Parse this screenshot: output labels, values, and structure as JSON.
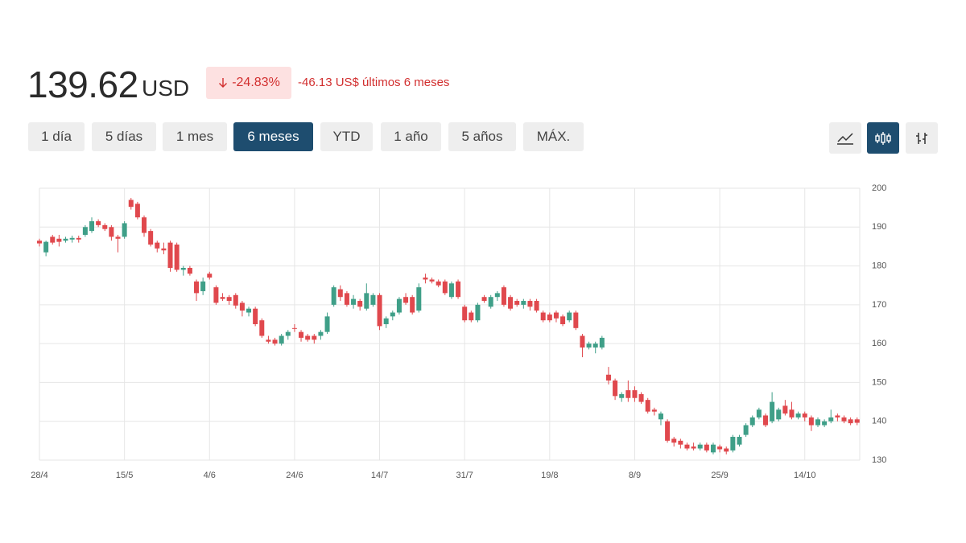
{
  "header": {
    "price": "139.62",
    "currency": "USD",
    "change_pct": "-24.83%",
    "change_text": "-46.13 US$ últimos 6 meses"
  },
  "range_buttons": [
    "1 día",
    "5 días",
    "1 mes",
    "6 meses",
    "YTD",
    "1 año",
    "5 años",
    "MÁX."
  ],
  "chart_data": {
    "type": "candlestick",
    "up_color": "#3f9f88",
    "down_color": "#e0484d",
    "grid": true,
    "xlim": [
      0,
      125.4
    ],
    "xticks": [
      {
        "value": 0,
        "label": "28/4"
      },
      {
        "value": 13,
        "label": "15/5"
      },
      {
        "value": 26,
        "label": "4/6"
      },
      {
        "value": 39,
        "label": "24/6"
      },
      {
        "value": 52,
        "label": "14/7"
      },
      {
        "value": 65,
        "label": "31/7"
      },
      {
        "value": 78,
        "label": "19/8"
      },
      {
        "value": 91,
        "label": "8/9"
      },
      {
        "value": 104,
        "label": "25/9"
      },
      {
        "value": 117,
        "label": "14/10"
      }
    ],
    "ylim": [
      130,
      200
    ],
    "yticks": [
      130,
      140,
      150,
      160,
      170,
      180,
      190,
      200
    ],
    "ohlc": [
      [
        186.5,
        187,
        185,
        185.8
      ],
      [
        183.5,
        186.5,
        182.5,
        186.2
      ],
      [
        187.5,
        188,
        185.5,
        186
      ],
      [
        187,
        188,
        185,
        186.2
      ],
      [
        186.5,
        187.5,
        186,
        187
      ],
      [
        186.8,
        187.8,
        186,
        187.2
      ],
      [
        187.2,
        187.8,
        186,
        186.8
      ],
      [
        188,
        190.5,
        187.5,
        190
      ],
      [
        189,
        192.5,
        188.5,
        191.5
      ],
      [
        191.5,
        192,
        190,
        190.5
      ],
      [
        190.5,
        191,
        189,
        189.5
      ],
      [
        190,
        190.5,
        186.5,
        187.5
      ],
      [
        187.5,
        188,
        183.5,
        187
      ],
      [
        187.5,
        191.5,
        187,
        191
      ],
      [
        197,
        197.5,
        194.5,
        195.2
      ],
      [
        196,
        196.5,
        192,
        192.5
      ],
      [
        192.5,
        193,
        187.5,
        188.5
      ],
      [
        189,
        189.5,
        185,
        185.5
      ],
      [
        186,
        186.5,
        183.5,
        184.5
      ],
      [
        184.5,
        186,
        183,
        184
      ],
      [
        186,
        186.5,
        178.5,
        179.5
      ],
      [
        185.5,
        186,
        178.5,
        179
      ],
      [
        179,
        180,
        177.5,
        179.5
      ],
      [
        179.5,
        180,
        177.5,
        178
      ],
      [
        176,
        176.5,
        171,
        173
      ],
      [
        173.5,
        177,
        172.5,
        176
      ],
      [
        178,
        178.5,
        176.5,
        177
      ],
      [
        174.5,
        175,
        170,
        170.5
      ],
      [
        172,
        173,
        171,
        171.5
      ],
      [
        172,
        172.5,
        170,
        171
      ],
      [
        172.5,
        173,
        169,
        169.8
      ],
      [
        170.5,
        171,
        167,
        168.5
      ],
      [
        168,
        169.5,
        167,
        169
      ],
      [
        169,
        169.5,
        164.5,
        165
      ],
      [
        166,
        166.5,
        161.5,
        162
      ],
      [
        161,
        162,
        160,
        160.5
      ],
      [
        161,
        161.5,
        159.5,
        160
      ],
      [
        160,
        162.5,
        159.5,
        162
      ],
      [
        162,
        163.5,
        161,
        163
      ],
      [
        164,
        165,
        163,
        163.8
      ],
      [
        163,
        163.5,
        160.5,
        161.5
      ],
      [
        162,
        162.5,
        160.5,
        161
      ],
      [
        162,
        162.5,
        160,
        161
      ],
      [
        162,
        163.5,
        161,
        163
      ],
      [
        163,
        168,
        162.5,
        167
      ],
      [
        170,
        175,
        169.5,
        174.5
      ],
      [
        174,
        175,
        171,
        172
      ],
      [
        173,
        173.5,
        169.5,
        170
      ],
      [
        170,
        172.5,
        169,
        171.5
      ],
      [
        171,
        171.5,
        168.5,
        169.5
      ],
      [
        169,
        175.5,
        168.5,
        173
      ],
      [
        170,
        173,
        169.5,
        172.5
      ],
      [
        172.5,
        173,
        163.5,
        164.5
      ],
      [
        165,
        167,
        164,
        166.5
      ],
      [
        167,
        168.5,
        166,
        168
      ],
      [
        168,
        172,
        167.5,
        171.5
      ],
      [
        172,
        173,
        170,
        170.5
      ],
      [
        172,
        172.5,
        167.5,
        168
      ],
      [
        168.5,
        175.5,
        168,
        174.5
      ],
      [
        177,
        178,
        175.5,
        176.5
      ],
      [
        176.5,
        177,
        175.5,
        176
      ],
      [
        176,
        176.5,
        174.5,
        175
      ],
      [
        176,
        176.5,
        172.5,
        173
      ],
      [
        172,
        176,
        171.5,
        175.5
      ],
      [
        176,
        176.5,
        171.5,
        172
      ],
      [
        169.5,
        170,
        165.5,
        166
      ],
      [
        168,
        168.5,
        165.5,
        166
      ],
      [
        166,
        170.5,
        165.5,
        170
      ],
      [
        172,
        172.5,
        170.5,
        171
      ],
      [
        169.5,
        172.5,
        169,
        172
      ],
      [
        172,
        173.5,
        171,
        173
      ],
      [
        174.5,
        175,
        169.5,
        170
      ],
      [
        172,
        172.5,
        168.5,
        169
      ],
      [
        171,
        171.5,
        169.5,
        170
      ],
      [
        170,
        171.5,
        169,
        171
      ],
      [
        171,
        171.5,
        168.5,
        169.5
      ],
      [
        171,
        171.5,
        168,
        168.5
      ],
      [
        168,
        168.5,
        165.5,
        166
      ],
      [
        167.5,
        168,
        165.5,
        166
      ],
      [
        168,
        168.5,
        165.5,
        166.5
      ],
      [
        167,
        167.5,
        164.5,
        165
      ],
      [
        166,
        168.5,
        165.5,
        168
      ],
      [
        168,
        168.5,
        163.5,
        164
      ],
      [
        162,
        162.5,
        156.5,
        159
      ],
      [
        159,
        160.5,
        158.5,
        160
      ],
      [
        159,
        160.5,
        157.5,
        160
      ],
      [
        159,
        162,
        158.5,
        161.5
      ],
      [
        152,
        154,
        149.5,
        150.5
      ],
      [
        150.5,
        151,
        145.5,
        146.5
      ],
      [
        146,
        147.5,
        145,
        147
      ],
      [
        148,
        150.5,
        145,
        146
      ],
      [
        148,
        149,
        145,
        146
      ],
      [
        147,
        147.5,
        144.5,
        145
      ],
      [
        145.5,
        146,
        142,
        142.5
      ],
      [
        143,
        143.5,
        141.5,
        142.5
      ],
      [
        140.5,
        142.5,
        139,
        142
      ],
      [
        140,
        140.5,
        134.5,
        135
      ],
      [
        135.5,
        136,
        133.5,
        134.5
      ],
      [
        135,
        135.5,
        133,
        134
      ],
      [
        134,
        134.5,
        132.5,
        133
      ],
      [
        133.5,
        134.5,
        132.5,
        133
      ],
      [
        133,
        134.5,
        132.5,
        134
      ],
      [
        134,
        134.5,
        132,
        132.5
      ],
      [
        132,
        134.5,
        131.5,
        134
      ],
      [
        133.5,
        134,
        132,
        132.8
      ],
      [
        133,
        133.5,
        131.5,
        132.2
      ],
      [
        132.5,
        136.5,
        132,
        136
      ],
      [
        134,
        136.5,
        133.5,
        136
      ],
      [
        136.5,
        139.5,
        136,
        139
      ],
      [
        139,
        141.5,
        138.5,
        141
      ],
      [
        141,
        143.5,
        140.5,
        143
      ],
      [
        141.5,
        142,
        138.5,
        139
      ],
      [
        140,
        147.5,
        139.5,
        145
      ],
      [
        140.5,
        143.5,
        140,
        143
      ],
      [
        144,
        145.5,
        141.5,
        142
      ],
      [
        143,
        145,
        140.5,
        141
      ],
      [
        141,
        142.5,
        140.5,
        142
      ],
      [
        142,
        142.5,
        140,
        141
      ],
      [
        141,
        141.5,
        137.5,
        139
      ],
      [
        139,
        141,
        138.5,
        140.5
      ],
      [
        139,
        140.5,
        138.5,
        140
      ],
      [
        140,
        143,
        139.5,
        141
      ],
      [
        141.5,
        142,
        140,
        141
      ],
      [
        141,
        141.5,
        139.5,
        140
      ],
      [
        140.5,
        141,
        139,
        139.5
      ],
      [
        140.5,
        141,
        139,
        139.62
      ]
    ]
  }
}
